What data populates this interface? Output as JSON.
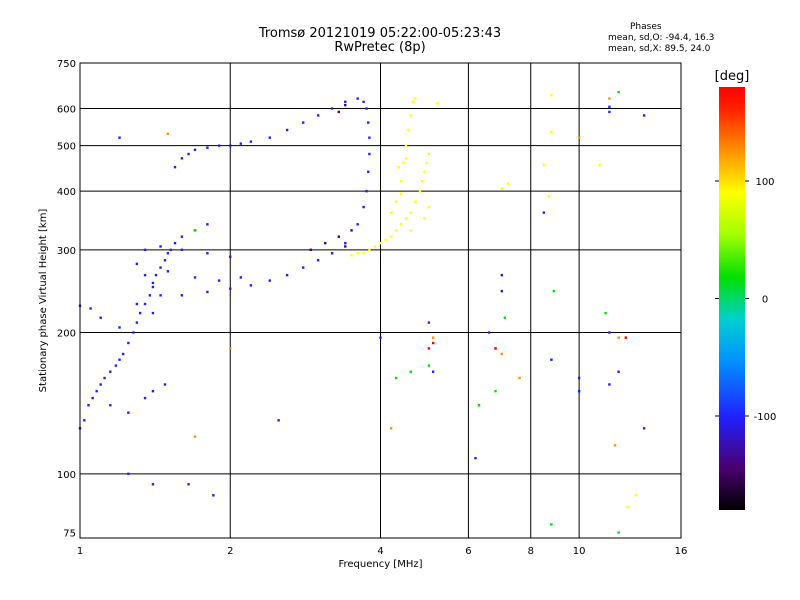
{
  "header": {
    "title": "Tromsø 20121019 05:22:00-05:23:43",
    "subtitle": "RwPretec (8p)"
  },
  "phase_box": {
    "heading": "Phases",
    "line_o": "mean, sd,O: -94.4, 16.3",
    "line_x": "mean, sd,X:  89.5, 24.0"
  },
  "chart_data": {
    "type": "scatter",
    "xlabel": "Frequency [MHz]",
    "ylabel": "Stationary phase Virtual Height [km]",
    "xscale": "log",
    "yscale": "log",
    "xlim": [
      1,
      16
    ],
    "ylim": [
      73,
      750
    ],
    "x_ticks": [
      1,
      2,
      4,
      6,
      8,
      10,
      16
    ],
    "y_ticks": [
      75,
      100,
      200,
      300,
      400,
      500,
      600,
      750
    ],
    "x_gridlines": [
      2,
      4,
      6,
      8,
      10
    ],
    "y_gridlines": [
      100,
      200,
      300,
      400,
      500,
      600
    ],
    "grid": true,
    "colorbar": {
      "label": "[deg]",
      "ticks": [
        100,
        0,
        -100
      ],
      "range": [
        -180,
        180
      ]
    },
    "series": [
      {
        "color_deg": -100,
        "points": [
          [
            1.0,
            125
          ],
          [
            1.02,
            130
          ],
          [
            1.04,
            140
          ],
          [
            1.06,
            145
          ],
          [
            1.08,
            150
          ],
          [
            1.1,
            155
          ],
          [
            1.12,
            160
          ],
          [
            1.15,
            165
          ],
          [
            1.18,
            170
          ],
          [
            1.2,
            175
          ],
          [
            1.22,
            180
          ],
          [
            1.25,
            190
          ],
          [
            1.28,
            200
          ],
          [
            1.3,
            210
          ],
          [
            1.32,
            220
          ],
          [
            1.35,
            230
          ],
          [
            1.38,
            240
          ],
          [
            1.4,
            255
          ],
          [
            1.42,
            265
          ],
          [
            1.45,
            275
          ],
          [
            1.48,
            285
          ],
          [
            1.5,
            295
          ],
          [
            1.52,
            300
          ],
          [
            1.55,
            310
          ],
          [
            1.6,
            320
          ],
          [
            1.7,
            330
          ],
          [
            1.8,
            340
          ],
          [
            1.55,
            450
          ],
          [
            1.6,
            470
          ],
          [
            1.65,
            480
          ],
          [
            1.7,
            490
          ],
          [
            1.8,
            495
          ],
          [
            1.9,
            500
          ],
          [
            2.0,
            500
          ],
          [
            2.1,
            505
          ],
          [
            2.2,
            510
          ],
          [
            2.4,
            520
          ],
          [
            2.6,
            540
          ],
          [
            2.8,
            560
          ],
          [
            3.0,
            580
          ],
          [
            3.2,
            600
          ],
          [
            3.4,
            620
          ],
          [
            3.6,
            630
          ],
          [
            3.7,
            620
          ],
          [
            3.75,
            600
          ],
          [
            3.78,
            560
          ],
          [
            3.8,
            520
          ],
          [
            3.8,
            480
          ],
          [
            3.78,
            440
          ],
          [
            3.75,
            400
          ],
          [
            3.7,
            370
          ],
          [
            3.6,
            340
          ],
          [
            3.4,
            310
          ],
          [
            3.2,
            295
          ],
          [
            3.0,
            285
          ],
          [
            2.8,
            275
          ],
          [
            2.6,
            265
          ],
          [
            2.4,
            258
          ],
          [
            2.2,
            252
          ],
          [
            2.0,
            248
          ],
          [
            1.8,
            244
          ],
          [
            1.6,
            240
          ],
          [
            1.45,
            240
          ],
          [
            1.4,
            250
          ],
          [
            1.35,
            265
          ],
          [
            1.3,
            280
          ],
          [
            1.35,
            300
          ],
          [
            1.45,
            305
          ],
          [
            1.6,
            300
          ],
          [
            1.8,
            295
          ],
          [
            2.0,
            290
          ],
          [
            1.5,
            270
          ],
          [
            1.7,
            262
          ],
          [
            1.9,
            258
          ],
          [
            2.1,
            262
          ],
          [
            1.4,
            220
          ],
          [
            1.2,
            205
          ],
          [
            1.1,
            215
          ],
          [
            1.05,
            225
          ],
          [
            1.0,
            228
          ],
          [
            1.15,
            140
          ],
          [
            1.25,
            135
          ],
          [
            1.35,
            145
          ],
          [
            1.4,
            150
          ],
          [
            1.48,
            155
          ],
          [
            1.2,
            520
          ],
          [
            1.3,
            230
          ],
          [
            1.25,
            100
          ],
          [
            1.4,
            95
          ],
          [
            1.65,
            95
          ],
          [
            1.85,
            90
          ],
          [
            2.5,
            130
          ],
          [
            4.0,
            195
          ],
          [
            6.6,
            200
          ],
          [
            7.0,
            265
          ],
          [
            7.0,
            245
          ],
          [
            8.5,
            360
          ],
          [
            8.8,
            175
          ],
          [
            10.0,
            160
          ],
          [
            10.0,
            150
          ],
          [
            11.5,
            200
          ],
          [
            11.5,
            155
          ],
          [
            12.0,
            165
          ],
          [
            13.5,
            580
          ],
          [
            13.5,
            125
          ],
          [
            6.2,
            108
          ],
          [
            11.5,
            590
          ],
          [
            11.5,
            605
          ],
          [
            5.0,
            210
          ],
          [
            5.1,
            165
          ]
        ]
      },
      {
        "color_deg": 90,
        "points": [
          [
            3.7,
            295
          ],
          [
            3.8,
            300
          ],
          [
            3.9,
            305
          ],
          [
            4.0,
            310
          ],
          [
            4.1,
            315
          ],
          [
            4.2,
            320
          ],
          [
            4.3,
            330
          ],
          [
            4.4,
            340
          ],
          [
            4.5,
            350
          ],
          [
            4.6,
            360
          ],
          [
            4.7,
            380
          ],
          [
            4.8,
            400
          ],
          [
            4.85,
            420
          ],
          [
            4.9,
            440
          ],
          [
            4.95,
            460
          ],
          [
            5.0,
            480
          ],
          [
            4.4,
            420
          ],
          [
            4.45,
            460
          ],
          [
            4.5,
            500
          ],
          [
            4.55,
            540
          ],
          [
            4.6,
            580
          ],
          [
            4.65,
            620
          ],
          [
            4.7,
            630
          ],
          [
            4.2,
            360
          ],
          [
            4.3,
            380
          ],
          [
            4.4,
            395
          ],
          [
            4.35,
            450
          ],
          [
            4.5,
            470
          ],
          [
            3.6,
            295
          ],
          [
            3.5,
            292
          ],
          [
            4.9,
            350
          ],
          [
            5.0,
            370
          ],
          [
            4.6,
            330
          ],
          [
            8.8,
            640
          ],
          [
            8.8,
            535
          ],
          [
            7.0,
            405
          ],
          [
            8.5,
            455
          ],
          [
            11.0,
            455
          ],
          [
            8.7,
            390
          ],
          [
            7.2,
            415
          ],
          [
            12.5,
            85
          ],
          [
            13.0,
            90
          ],
          [
            5.2,
            615
          ]
        ]
      },
      {
        "color_deg": 150,
        "points": [
          [
            1.5,
            530
          ],
          [
            1.7,
            120
          ],
          [
            2.0,
            185
          ],
          [
            4.2,
            125
          ],
          [
            5.1,
            195
          ],
          [
            6.8,
            185
          ],
          [
            7.0,
            180
          ],
          [
            7.6,
            160
          ],
          [
            10.0,
            520
          ],
          [
            11.5,
            630
          ],
          [
            12.0,
            195
          ],
          [
            11.8,
            115
          ]
        ]
      },
      {
        "color_deg": 0,
        "points": [
          [
            1.7,
            330
          ],
          [
            4.6,
            165
          ],
          [
            5.0,
            170
          ],
          [
            6.8,
            150
          ],
          [
            7.1,
            215
          ],
          [
            8.9,
            245
          ],
          [
            11.3,
            220
          ],
          [
            12.0,
            75
          ],
          [
            8.8,
            78
          ],
          [
            6.3,
            140
          ],
          [
            4.3,
            160
          ],
          [
            12.0,
            650
          ]
        ]
      },
      {
        "color_deg": 180,
        "points": [
          [
            5.1,
            190
          ],
          [
            5.0,
            185
          ],
          [
            12.4,
            195
          ],
          [
            6.8,
            185
          ]
        ]
      },
      {
        "color_deg": -160,
        "points": [
          [
            2.9,
            300
          ],
          [
            3.1,
            310
          ],
          [
            3.3,
            320
          ],
          [
            3.4,
            305
          ],
          [
            3.5,
            330
          ],
          [
            3.3,
            590
          ],
          [
            3.4,
            610
          ]
        ]
      }
    ]
  }
}
